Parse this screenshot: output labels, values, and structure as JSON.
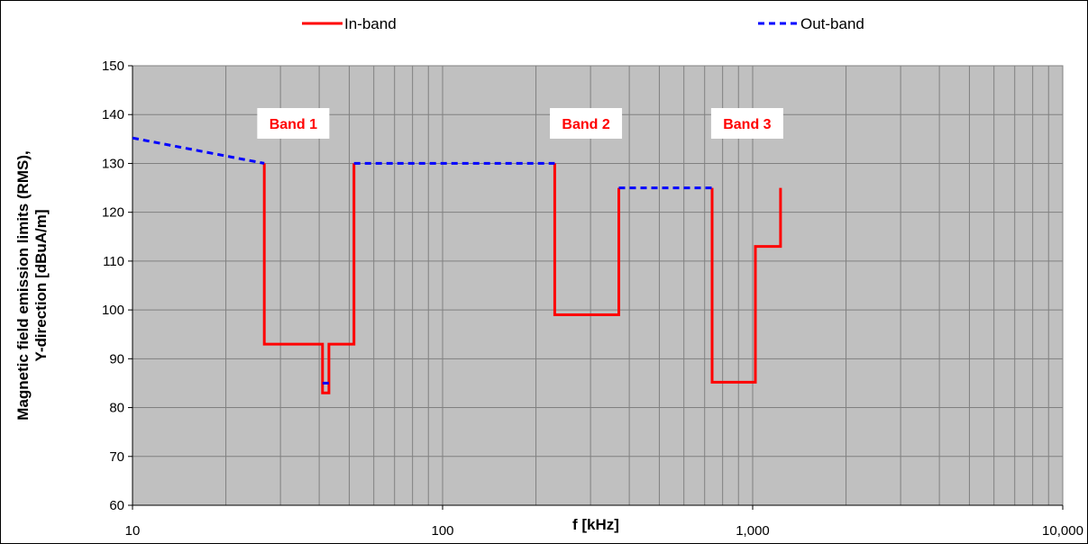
{
  "chart_data": {
    "type": "line",
    "title": "",
    "xlabel": "f [kHz]",
    "ylabel_line1": "Magnetic field emission limits (RMS),",
    "ylabel_line2": "Y-direction [dBuA/m]",
    "x_scale": "log",
    "xlim": [
      10,
      10000
    ],
    "ylim": [
      60,
      150
    ],
    "x_ticks": [
      10,
      100,
      1000,
      10000
    ],
    "x_tick_labels": [
      "10",
      "100",
      "1,000",
      "10,000"
    ],
    "y_ticks": [
      60,
      70,
      80,
      90,
      100,
      110,
      120,
      130,
      140,
      150
    ],
    "y_tick_labels": [
      "60",
      "70",
      "80",
      "90",
      "100",
      "110",
      "120",
      "130",
      "140",
      "150"
    ],
    "grid": true,
    "plot_background": "#c0c0c0",
    "legend_position": "top",
    "series": [
      {
        "name": "In-band",
        "color": "#ff0000",
        "style": "solid",
        "segments": [
          [
            [
              26.6,
              130
            ],
            [
              26.6,
              93
            ],
            [
              41.0,
              93
            ],
            [
              41.0,
              83
            ],
            [
              43.0,
              83
            ],
            [
              43.0,
              93
            ],
            [
              51.8,
              93
            ],
            [
              51.8,
              130
            ]
          ],
          [
            [
              230,
              130
            ],
            [
              230,
              99
            ],
            [
              370,
              99
            ],
            [
              370,
              125
            ]
          ],
          [
            [
              740,
              125
            ],
            [
              740,
              85.2
            ],
            [
              1020,
              85.2
            ],
            [
              1020,
              113
            ],
            [
              1230,
              113
            ],
            [
              1230,
              125
            ]
          ]
        ]
      },
      {
        "name": "Out-band",
        "color": "#0000ff",
        "style": "dashed",
        "segments": [
          [
            [
              10,
              135.2
            ],
            [
              26.6,
              130
            ]
          ],
          [
            [
              51.8,
              130
            ],
            [
              230,
              130
            ]
          ],
          [
            [
              370,
              125
            ],
            [
              740,
              125
            ]
          ],
          [
            [
              41.0,
              85
            ],
            [
              43.0,
              85
            ]
          ]
        ]
      }
    ],
    "annotations": [
      {
        "text": "Band 1",
        "x": 33,
        "y": 138.2
      },
      {
        "text": "Band 2",
        "x": 290,
        "y": 138.2
      },
      {
        "text": "Band 3",
        "x": 960,
        "y": 138.2
      }
    ]
  }
}
